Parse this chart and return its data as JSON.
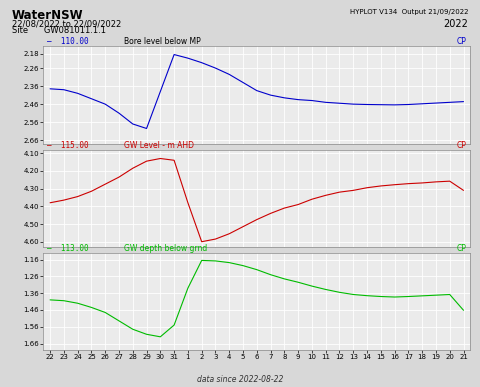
{
  "title": "WaterNSW",
  "subtitle1": "22/08/2022 to 22/09/2022",
  "subtitle2": "Site      GW081011.1.1",
  "top_right1": "HYPLOT V134  Output 21/09/2022",
  "top_right2": "2022",
  "footer": "data since 2022-08-22",
  "panel1_num": "110.00",
  "panel1_text": "Bore level below MP",
  "panel1_color": "#0000cc",
  "panel1_yticks": [
    2.18,
    2.26,
    2.36,
    2.46,
    2.56,
    2.66
  ],
  "panel1_ylim": [
    2.68,
    2.14
  ],
  "panel2_num": "115.00",
  "panel2_text": "GW Level - m AHD",
  "panel2_color": "#cc0000",
  "panel2_yticks": [
    4.6,
    4.5,
    4.4,
    4.3,
    4.2,
    4.1
  ],
  "panel2_ylim": [
    4.63,
    4.08
  ],
  "panel3_num": "113.00",
  "panel3_text": "GW depth below grnd",
  "panel3_color": "#00bb00",
  "panel3_yticks": [
    1.16,
    1.26,
    1.36,
    1.46,
    1.56,
    1.66
  ],
  "panel3_ylim": [
    1.7,
    1.12
  ],
  "xtick_labels": [
    "22",
    "23",
    "24",
    "25",
    "26",
    "27",
    "28",
    "29",
    "30",
    "31",
    "1",
    "2",
    "3",
    "4",
    "5",
    "6",
    "7",
    "8",
    "9",
    "10",
    "11",
    "12",
    "13",
    "14",
    "15",
    "16",
    "17",
    "18",
    "19",
    "20",
    "21"
  ],
  "bg_color": "#d8d8d8",
  "plot_bg": "#ebebeb",
  "grid_color": "#ffffff",
  "p1": [
    2.375,
    2.375,
    2.38,
    2.39,
    2.4,
    2.415,
    2.43,
    2.445,
    2.46,
    2.49,
    2.51,
    2.54,
    2.57,
    2.59,
    2.595,
    2.54,
    2.39,
    2.205,
    2.185,
    2.19,
    2.205,
    2.215,
    2.23,
    2.245,
    2.26,
    2.275,
    2.295,
    2.32,
    2.34,
    2.365,
    2.385,
    2.395,
    2.41,
    2.42,
    2.425,
    2.43,
    2.435,
    2.44,
    2.44,
    2.445,
    2.45,
    2.455,
    2.455,
    2.46,
    2.46,
    2.462,
    2.462,
    2.463,
    2.463,
    2.464,
    2.464,
    2.465,
    2.462,
    2.46,
    2.458,
    2.456,
    2.454,
    2.452,
    2.45,
    2.448,
    2.446
  ],
  "p2": [
    4.38,
    4.37,
    4.365,
    4.355,
    4.345,
    4.33,
    4.315,
    4.295,
    4.275,
    4.255,
    4.235,
    4.21,
    4.185,
    4.16,
    4.145,
    4.135,
    4.13,
    4.13,
    4.14,
    4.195,
    4.38,
    4.56,
    4.6,
    4.595,
    4.585,
    4.57,
    4.555,
    4.535,
    4.515,
    4.495,
    4.475,
    4.455,
    4.44,
    4.425,
    4.41,
    4.4,
    4.39,
    4.375,
    4.36,
    4.348,
    4.338,
    4.328,
    4.32,
    4.315,
    4.31,
    4.302,
    4.295,
    4.29,
    4.285,
    4.28,
    4.278,
    4.275,
    4.272,
    4.27,
    4.268,
    4.265,
    4.262,
    4.26,
    4.258,
    4.255,
    4.31
  ],
  "p3": [
    1.4,
    1.4,
    1.405,
    1.41,
    1.42,
    1.43,
    1.445,
    1.46,
    1.475,
    1.5,
    1.525,
    1.55,
    1.575,
    1.595,
    1.605,
    1.62,
    1.62,
    1.6,
    1.55,
    1.46,
    1.33,
    1.19,
    1.165,
    1.165,
    1.168,
    1.172,
    1.178,
    1.186,
    1.196,
    1.208,
    1.22,
    1.235,
    1.25,
    1.265,
    1.275,
    1.285,
    1.295,
    1.308,
    1.318,
    1.328,
    1.338,
    1.348,
    1.355,
    1.362,
    1.368,
    1.372,
    1.375,
    1.378,
    1.38,
    1.382,
    1.383,
    1.382,
    1.38,
    1.378,
    1.376,
    1.374,
    1.372,
    1.37,
    1.368,
    1.466,
    1.462
  ]
}
